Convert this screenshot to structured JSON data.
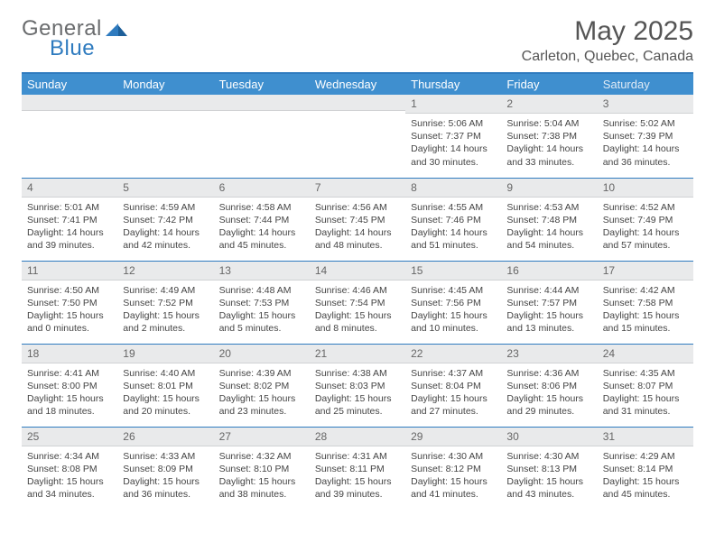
{
  "header": {
    "logo_general": "General",
    "logo_blue": "Blue",
    "month_title": "May 2025",
    "location": "Carleton, Quebec, Canada"
  },
  "colors": {
    "header_bar": "#3f8fcf",
    "border": "#2f7bbf",
    "daynum_bg": "#e9eaeb",
    "text": "#444444",
    "logo_gray": "#6a6c6e"
  },
  "weekdays": [
    "Sunday",
    "Monday",
    "Tuesday",
    "Wednesday",
    "Thursday",
    "Friday",
    "Saturday"
  ],
  "weeks": [
    [
      {
        "n": "",
        "sr": "",
        "ss": "",
        "dl": ""
      },
      {
        "n": "",
        "sr": "",
        "ss": "",
        "dl": ""
      },
      {
        "n": "",
        "sr": "",
        "ss": "",
        "dl": ""
      },
      {
        "n": "",
        "sr": "",
        "ss": "",
        "dl": ""
      },
      {
        "n": "1",
        "sr": "5:06 AM",
        "ss": "7:37 PM",
        "dl": "14 hours and 30 minutes."
      },
      {
        "n": "2",
        "sr": "5:04 AM",
        "ss": "7:38 PM",
        "dl": "14 hours and 33 minutes."
      },
      {
        "n": "3",
        "sr": "5:02 AM",
        "ss": "7:39 PM",
        "dl": "14 hours and 36 minutes."
      }
    ],
    [
      {
        "n": "4",
        "sr": "5:01 AM",
        "ss": "7:41 PM",
        "dl": "14 hours and 39 minutes."
      },
      {
        "n": "5",
        "sr": "4:59 AM",
        "ss": "7:42 PM",
        "dl": "14 hours and 42 minutes."
      },
      {
        "n": "6",
        "sr": "4:58 AM",
        "ss": "7:44 PM",
        "dl": "14 hours and 45 minutes."
      },
      {
        "n": "7",
        "sr": "4:56 AM",
        "ss": "7:45 PM",
        "dl": "14 hours and 48 minutes."
      },
      {
        "n": "8",
        "sr": "4:55 AM",
        "ss": "7:46 PM",
        "dl": "14 hours and 51 minutes."
      },
      {
        "n": "9",
        "sr": "4:53 AM",
        "ss": "7:48 PM",
        "dl": "14 hours and 54 minutes."
      },
      {
        "n": "10",
        "sr": "4:52 AM",
        "ss": "7:49 PM",
        "dl": "14 hours and 57 minutes."
      }
    ],
    [
      {
        "n": "11",
        "sr": "4:50 AM",
        "ss": "7:50 PM",
        "dl": "15 hours and 0 minutes."
      },
      {
        "n": "12",
        "sr": "4:49 AM",
        "ss": "7:52 PM",
        "dl": "15 hours and 2 minutes."
      },
      {
        "n": "13",
        "sr": "4:48 AM",
        "ss": "7:53 PM",
        "dl": "15 hours and 5 minutes."
      },
      {
        "n": "14",
        "sr": "4:46 AM",
        "ss": "7:54 PM",
        "dl": "15 hours and 8 minutes."
      },
      {
        "n": "15",
        "sr": "4:45 AM",
        "ss": "7:56 PM",
        "dl": "15 hours and 10 minutes."
      },
      {
        "n": "16",
        "sr": "4:44 AM",
        "ss": "7:57 PM",
        "dl": "15 hours and 13 minutes."
      },
      {
        "n": "17",
        "sr": "4:42 AM",
        "ss": "7:58 PM",
        "dl": "15 hours and 15 minutes."
      }
    ],
    [
      {
        "n": "18",
        "sr": "4:41 AM",
        "ss": "8:00 PM",
        "dl": "15 hours and 18 minutes."
      },
      {
        "n": "19",
        "sr": "4:40 AM",
        "ss": "8:01 PM",
        "dl": "15 hours and 20 minutes."
      },
      {
        "n": "20",
        "sr": "4:39 AM",
        "ss": "8:02 PM",
        "dl": "15 hours and 23 minutes."
      },
      {
        "n": "21",
        "sr": "4:38 AM",
        "ss": "8:03 PM",
        "dl": "15 hours and 25 minutes."
      },
      {
        "n": "22",
        "sr": "4:37 AM",
        "ss": "8:04 PM",
        "dl": "15 hours and 27 minutes."
      },
      {
        "n": "23",
        "sr": "4:36 AM",
        "ss": "8:06 PM",
        "dl": "15 hours and 29 minutes."
      },
      {
        "n": "24",
        "sr": "4:35 AM",
        "ss": "8:07 PM",
        "dl": "15 hours and 31 minutes."
      }
    ],
    [
      {
        "n": "25",
        "sr": "4:34 AM",
        "ss": "8:08 PM",
        "dl": "15 hours and 34 minutes."
      },
      {
        "n": "26",
        "sr": "4:33 AM",
        "ss": "8:09 PM",
        "dl": "15 hours and 36 minutes."
      },
      {
        "n": "27",
        "sr": "4:32 AM",
        "ss": "8:10 PM",
        "dl": "15 hours and 38 minutes."
      },
      {
        "n": "28",
        "sr": "4:31 AM",
        "ss": "8:11 PM",
        "dl": "15 hours and 39 minutes."
      },
      {
        "n": "29",
        "sr": "4:30 AM",
        "ss": "8:12 PM",
        "dl": "15 hours and 41 minutes."
      },
      {
        "n": "30",
        "sr": "4:30 AM",
        "ss": "8:13 PM",
        "dl": "15 hours and 43 minutes."
      },
      {
        "n": "31",
        "sr": "4:29 AM",
        "ss": "8:14 PM",
        "dl": "15 hours and 45 minutes."
      }
    ]
  ],
  "labels": {
    "sunrise": "Sunrise: ",
    "sunset": "Sunset: ",
    "daylight": "Daylight: "
  }
}
